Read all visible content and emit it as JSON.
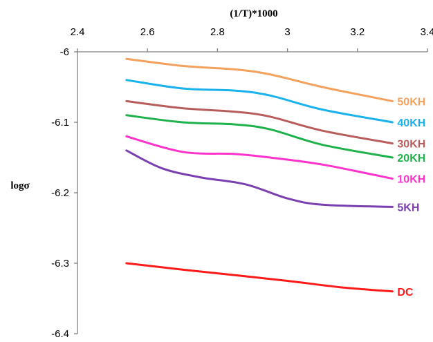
{
  "chart_data": {
    "type": "line",
    "xlabel": "(1/T)*1000",
    "ylabel": "logσ",
    "xlim": [
      2.4,
      3.4
    ],
    "ylim": [
      -6.4,
      -6.0
    ],
    "x_ticks": [
      "2.4",
      "2.6",
      "2.8",
      "3",
      "3.2",
      "3.4"
    ],
    "y_ticks": [
      "-6",
      "-6.1",
      "-6.2",
      "-6.3",
      "-6.4"
    ],
    "x_axis_position": "top",
    "grid": false,
    "legend": "inline labels at right end of lines",
    "series": [
      {
        "name": "50KH",
        "color": "#f4a15d",
        "x": [
          2.54,
          2.7,
          2.85,
          2.95,
          3.1,
          3.3
        ],
        "y": [
          -6.01,
          -6.02,
          -6.025,
          -6.032,
          -6.05,
          -6.07
        ]
      },
      {
        "name": "40KH",
        "color": "#1ab2ec",
        "x": [
          2.54,
          2.7,
          2.85,
          2.95,
          3.1,
          3.3
        ],
        "y": [
          -6.04,
          -6.052,
          -6.055,
          -6.062,
          -6.082,
          -6.1
        ]
      },
      {
        "name": "30KH",
        "color": "#b85c5c",
        "x": [
          2.54,
          2.7,
          2.85,
          2.95,
          3.1,
          3.3
        ],
        "y": [
          -6.07,
          -6.08,
          -6.085,
          -6.092,
          -6.112,
          -6.13
        ]
      },
      {
        "name": "20KH",
        "color": "#1fb24c",
        "x": [
          2.54,
          2.7,
          2.85,
          2.95,
          3.1,
          3.3
        ],
        "y": [
          -6.09,
          -6.1,
          -6.103,
          -6.11,
          -6.132,
          -6.15
        ]
      },
      {
        "name": "10KH",
        "color": "#ff33cc",
        "x": [
          2.54,
          2.7,
          2.85,
          2.95,
          3.1,
          3.3
        ],
        "y": [
          -6.12,
          -6.142,
          -6.145,
          -6.15,
          -6.16,
          -6.18
        ]
      },
      {
        "name": "5KH",
        "color": "#7a3fb0",
        "x": [
          2.54,
          2.64,
          2.75,
          2.88,
          3.0,
          3.1,
          3.3
        ],
        "y": [
          -6.14,
          -6.165,
          -6.178,
          -6.188,
          -6.208,
          -6.217,
          -6.22
        ]
      },
      {
        "name": "DC",
        "color": "#ff1a1a",
        "x": [
          2.54,
          2.7,
          2.85,
          3.0,
          3.15,
          3.3
        ],
        "y": [
          -6.3,
          -6.309,
          -6.317,
          -6.325,
          -6.334,
          -6.34
        ]
      }
    ]
  }
}
